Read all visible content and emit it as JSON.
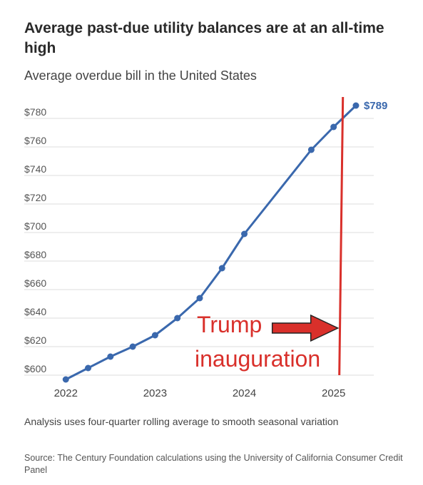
{
  "chart_data": {
    "type": "line",
    "title": "Average past-due utility balances are at an all-time high",
    "subtitle": "Average overdue bill in the United States",
    "xlabel": "",
    "ylabel": "",
    "x": [
      2022.0,
      2022.25,
      2022.5,
      2022.75,
      2023.0,
      2023.25,
      2023.5,
      2023.75,
      2024.0,
      2024.75,
      2025.0,
      2025.25
    ],
    "series": [
      {
        "values": [
          597,
          605,
          613,
          620,
          628,
          640,
          654,
          675,
          699,
          758,
          774,
          789
        ]
      }
    ],
    "xlim": [
      2021.95,
      2025.45
    ],
    "ylim": [
      598,
      790
    ],
    "yticks": [
      600,
      620,
      640,
      660,
      680,
      700,
      720,
      740,
      760,
      780
    ],
    "ytick_labels": [
      "$600",
      "$620",
      "$640",
      "$660",
      "$680",
      "$700",
      "$720",
      "$740",
      "$760",
      "$780"
    ],
    "xticks": [
      2022,
      2023,
      2024,
      2025
    ],
    "xtick_labels": [
      "2022",
      "2023",
      "2024",
      "2025"
    ],
    "grid": true,
    "last_value_label": "$789",
    "line_color": "#3a68ad",
    "annotation": {
      "text_line1": "Trump",
      "text_line2": "inauguration",
      "x": 2025.08,
      "color": "#d9302b"
    }
  },
  "footer": {
    "note": "Analysis uses four-quarter rolling average to smooth seasonal variation",
    "source": "Source: The Century Foundation calculations using the University of California Consumer Credit Panel"
  }
}
